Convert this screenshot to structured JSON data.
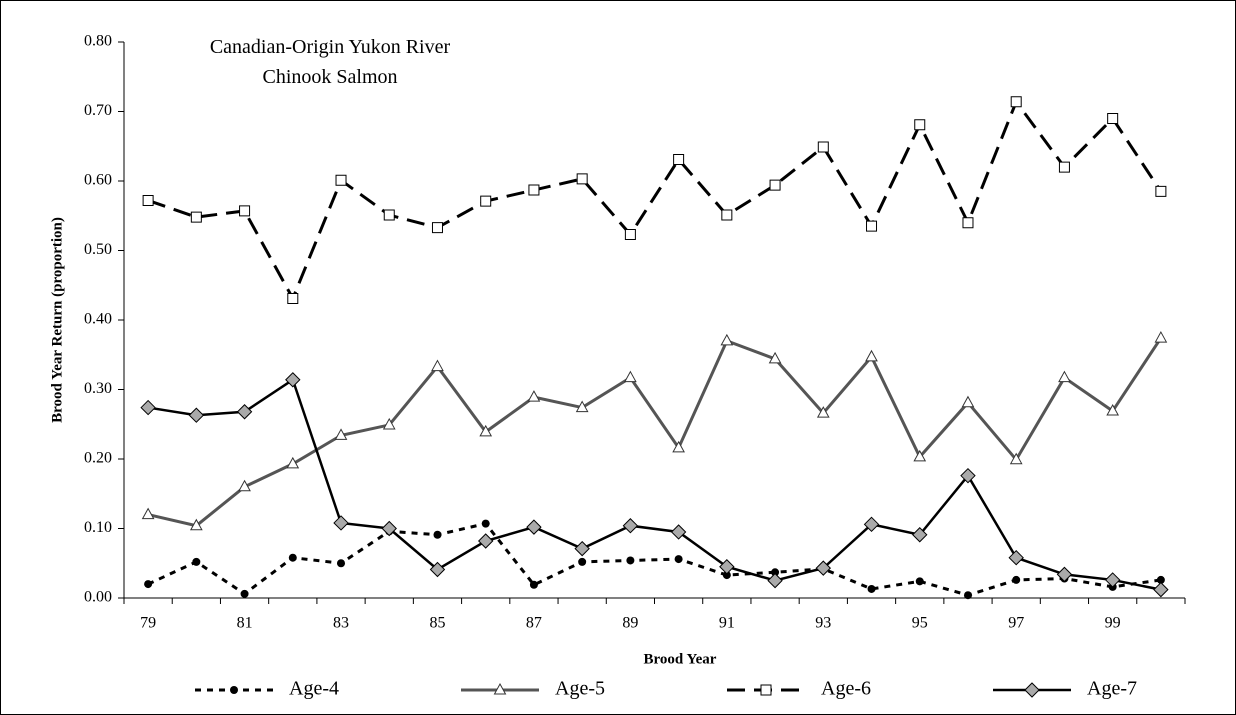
{
  "chart_data": {
    "type": "line",
    "title": "Canadian-Origin Yukon River Chinook Salmon",
    "x_label": "Brood Year",
    "y_label": "Brood Year Return (proportion)",
    "categories": [
      "79",
      null,
      "81",
      null,
      "83",
      null,
      "85",
      null,
      "87",
      null,
      "89",
      null,
      "91",
      null,
      "93",
      null,
      "95",
      null,
      "97",
      null,
      "99",
      null
    ],
    "series": [
      {
        "name": "Age-4",
        "color": "#000000",
        "values": [
          0.02,
          0.052,
          0.006,
          0.058,
          0.05,
          0.096,
          0.091,
          0.107,
          0.019,
          0.052,
          0.054,
          0.056,
          0.033,
          0.037,
          0.042,
          0.013,
          0.024,
          0.004,
          0.026,
          0.028,
          0.016,
          0.026
        ]
      },
      {
        "name": "Age-5",
        "color": "#555555",
        "values": [
          0.12,
          0.104,
          0.16,
          0.193,
          0.234,
          0.249,
          0.333,
          0.239,
          0.289,
          0.274,
          0.317,
          0.216,
          0.37,
          0.344,
          0.266,
          0.347,
          0.203,
          0.281,
          0.199,
          0.317,
          0.269,
          0.374
        ]
      },
      {
        "name": "Age-6",
        "color": "#000000",
        "values": [
          0.572,
          0.548,
          0.557,
          0.431,
          0.601,
          0.551,
          0.533,
          0.571,
          0.587,
          0.603,
          0.523,
          0.631,
          0.551,
          0.594,
          0.649,
          0.535,
          0.681,
          0.54,
          0.714,
          0.62,
          0.69,
          0.585
        ]
      },
      {
        "name": "Age-7",
        "color": "#000000",
        "values": [
          0.274,
          0.263,
          0.268,
          0.314,
          0.108,
          0.1,
          0.041,
          0.082,
          0.102,
          0.071,
          0.104,
          0.095,
          0.045,
          0.025,
          0.043,
          0.106,
          0.091,
          0.176,
          0.058,
          0.034,
          0.026,
          0.012
        ]
      }
    ],
    "ylim": [
      0,
      0.8
    ],
    "yticks": [
      {
        "value": 0,
        "label": "0.00"
      },
      {
        "value": 0.1,
        "label": "0.10"
      },
      {
        "value": 0.2,
        "label": "0.20"
      },
      {
        "value": 0.3,
        "label": "0.30"
      },
      {
        "value": 0.4,
        "label": "0.40"
      },
      {
        "value": 0.5,
        "label": "0.50"
      },
      {
        "value": 0.6,
        "label": "0.60"
      },
      {
        "value": 0.7,
        "label": "0.70"
      },
      {
        "value": 0.8,
        "label": "0.80"
      }
    ],
    "legend": "bottom"
  }
}
